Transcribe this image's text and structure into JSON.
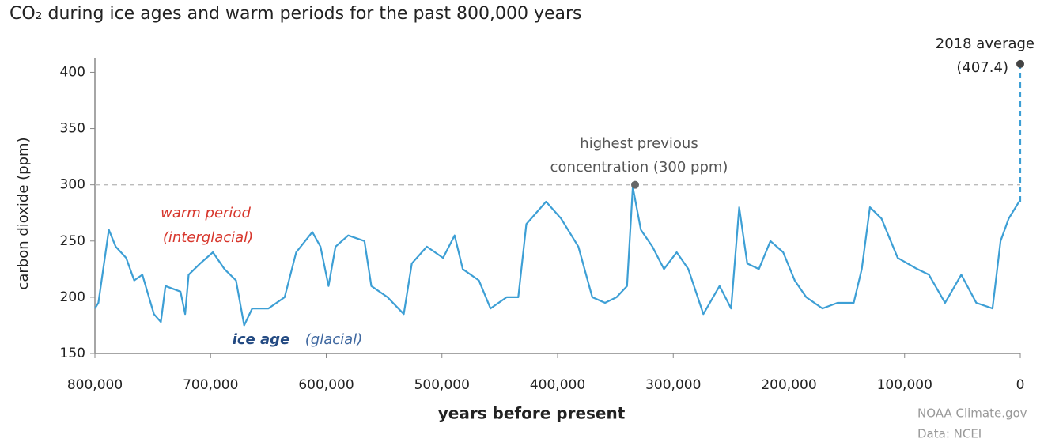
{
  "chart_data": {
    "type": "line",
    "title": "CO₂ during ice ages and warm periods for the past 800,000 years",
    "x_label": "years before present",
    "y_label": "carbon dioxide (ppm)",
    "xlim": [
      800000,
      0
    ],
    "ylim": [
      150,
      420
    ],
    "xticks": [
      {
        "value": 800000,
        "label": "800,000"
      },
      {
        "value": 700000,
        "label": "700,000"
      },
      {
        "value": 600000,
        "label": "600,000"
      },
      {
        "value": 500000,
        "label": "500,000"
      },
      {
        "value": 400000,
        "label": "400,000"
      },
      {
        "value": 300000,
        "label": "300,000"
      },
      {
        "value": 200000,
        "label": "200,000"
      },
      {
        "value": 100000,
        "label": "100,000"
      },
      0
    ],
    "yticks": [
      150,
      200,
      250,
      300,
      350,
      400
    ],
    "series": [
      {
        "color": "#3d9fd5",
        "x": [
          800000,
          797000,
          788000,
          782000,
          773000,
          766000,
          759000,
          749000,
          743000,
          739000,
          726000,
          722000,
          719000,
          709000,
          698000,
          688000,
          678000,
          671000,
          664000,
          650000,
          636000,
          626000,
          612000,
          605000,
          598000,
          592000,
          581000,
          567000,
          561000,
          547000,
          533000,
          526000,
          513000,
          499000,
          489000,
          482000,
          468000,
          458000,
          444000,
          434000,
          427000,
          410000,
          397000,
          382000,
          370000,
          359000,
          349000,
          340000,
          335000,
          328000,
          318000,
          308000,
          297000,
          287000,
          274000,
          260000,
          250000,
          243000,
          236000,
          226000,
          216000,
          205000,
          195000,
          185000,
          171000,
          158000,
          144000,
          137000,
          130000,
          120000,
          106000,
          89000,
          79000,
          65000,
          51000,
          38000,
          24000,
          17000,
          10000,
          1000
        ],
        "values": [
          190,
          195,
          260,
          245,
          235,
          215,
          220,
          185,
          178,
          210,
          205,
          185,
          220,
          230,
          240,
          225,
          215,
          175,
          190,
          190,
          200,
          240,
          258,
          245,
          210,
          245,
          255,
          250,
          210,
          200,
          185,
          230,
          245,
          235,
          255,
          225,
          215,
          190,
          200,
          200,
          265,
          285,
          270,
          245,
          200,
          195,
          200,
          210,
          298,
          260,
          245,
          225,
          240,
          225,
          185,
          210,
          190,
          280,
          230,
          225,
          250,
          240,
          215,
          200,
          190,
          195,
          195,
          225,
          280,
          270,
          235,
          225,
          220,
          195,
          220,
          195,
          190,
          250,
          270,
          285
        ]
      }
    ],
    "reference_line": 300,
    "highlights": [
      {
        "x": 0,
        "value": 407.4,
        "label": "2018 average",
        "value_label": "(407.4)",
        "color": "#3d9fd5"
      },
      {
        "x": 333000,
        "value": 300,
        "label": [
          "highest previous",
          "concentration (300 ppm)"
        ]
      }
    ],
    "annotations": [
      {
        "text": "warm period",
        "color": "#d7362c"
      },
      {
        "text": "(interglacial)",
        "color": "#d7362c"
      },
      {
        "text": "ice age",
        "color": "#234a82"
      },
      {
        "text": "(glacial)",
        "color": "#3f68a0"
      }
    ],
    "credits": [
      "NOAA Climate.gov",
      "Data: NCEI"
    ]
  }
}
